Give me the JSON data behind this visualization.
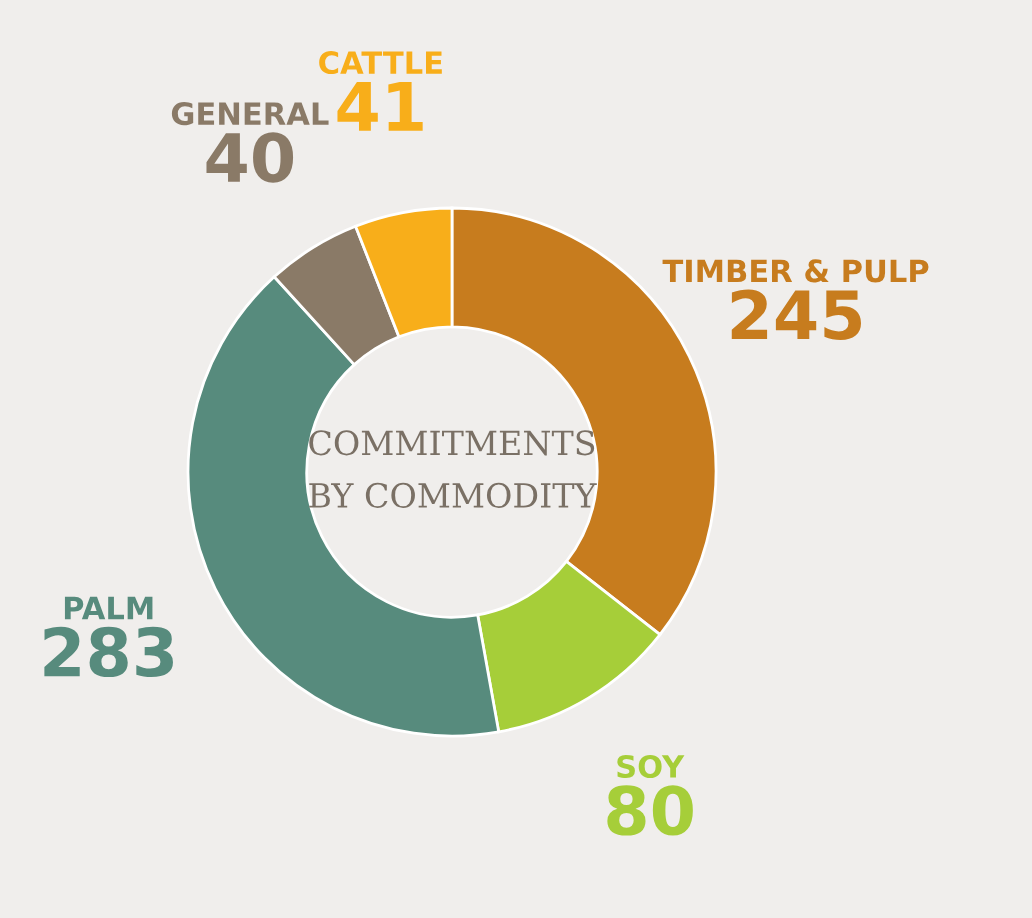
{
  "chart_data": {
    "type": "donut",
    "title": "COMMITMENTS\nBY COMMODITY",
    "categories": [
      "TIMBER & PULP",
      "SOY",
      "PALM",
      "GENERAL",
      "CATTLE"
    ],
    "values": [
      245,
      80,
      283,
      40,
      41
    ],
    "colors": [
      "#c77c1e",
      "#a6ce39",
      "#578b7d",
      "#8a7a67",
      "#f8ae1a"
    ],
    "data_labels": true,
    "legend": false
  }
}
